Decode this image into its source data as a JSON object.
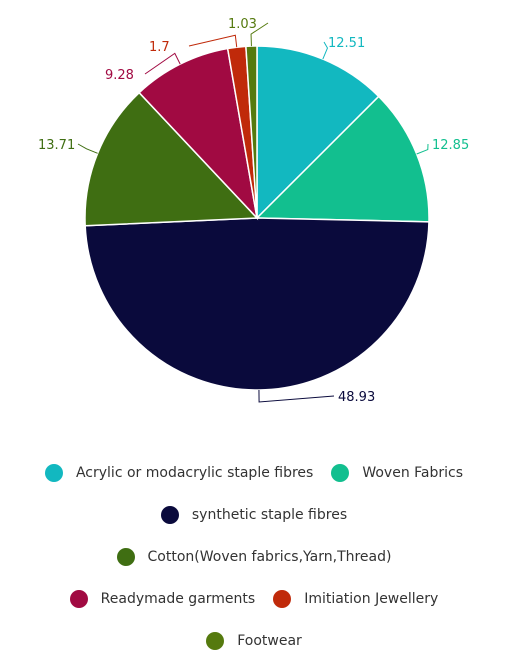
{
  "chart_data": {
    "type": "pie",
    "title": "",
    "start_angle_deg": 0,
    "direction": "clockwise",
    "slices": [
      {
        "label": "Acrylic or modacrylic staple fibres",
        "value": 12.51,
        "value_label": "12.51",
        "color": "#12b8c0"
      },
      {
        "label": "Woven Fabrics",
        "value": 12.85,
        "value_label": "12.85",
        "color": "#12bf8f"
      },
      {
        "label": "synthetic staple fibres",
        "value": 48.93,
        "value_label": "48.93",
        "color": "#0a0a3c"
      },
      {
        "label": "Cotton(Woven fabrics,Yarn,Thread)",
        "value": 13.71,
        "value_label": "13.71",
        "color": "#3f6e12"
      },
      {
        "label": "Readymade garments",
        "value": 9.28,
        "value_label": "9.28",
        "color": "#a10a42"
      },
      {
        "label": "Imitiation Jewellery",
        "value": 1.7,
        "value_label": "1.7",
        "color": "#c02a0a"
      },
      {
        "label": "Footwear",
        "value": 1.03,
        "value_label": "1.03",
        "color": "#557a0e"
      }
    ],
    "legend_position": "bottom",
    "legend_rows": [
      [
        0,
        1
      ],
      [
        2
      ],
      [
        3
      ],
      [
        4,
        5
      ],
      [
        6
      ]
    ]
  }
}
